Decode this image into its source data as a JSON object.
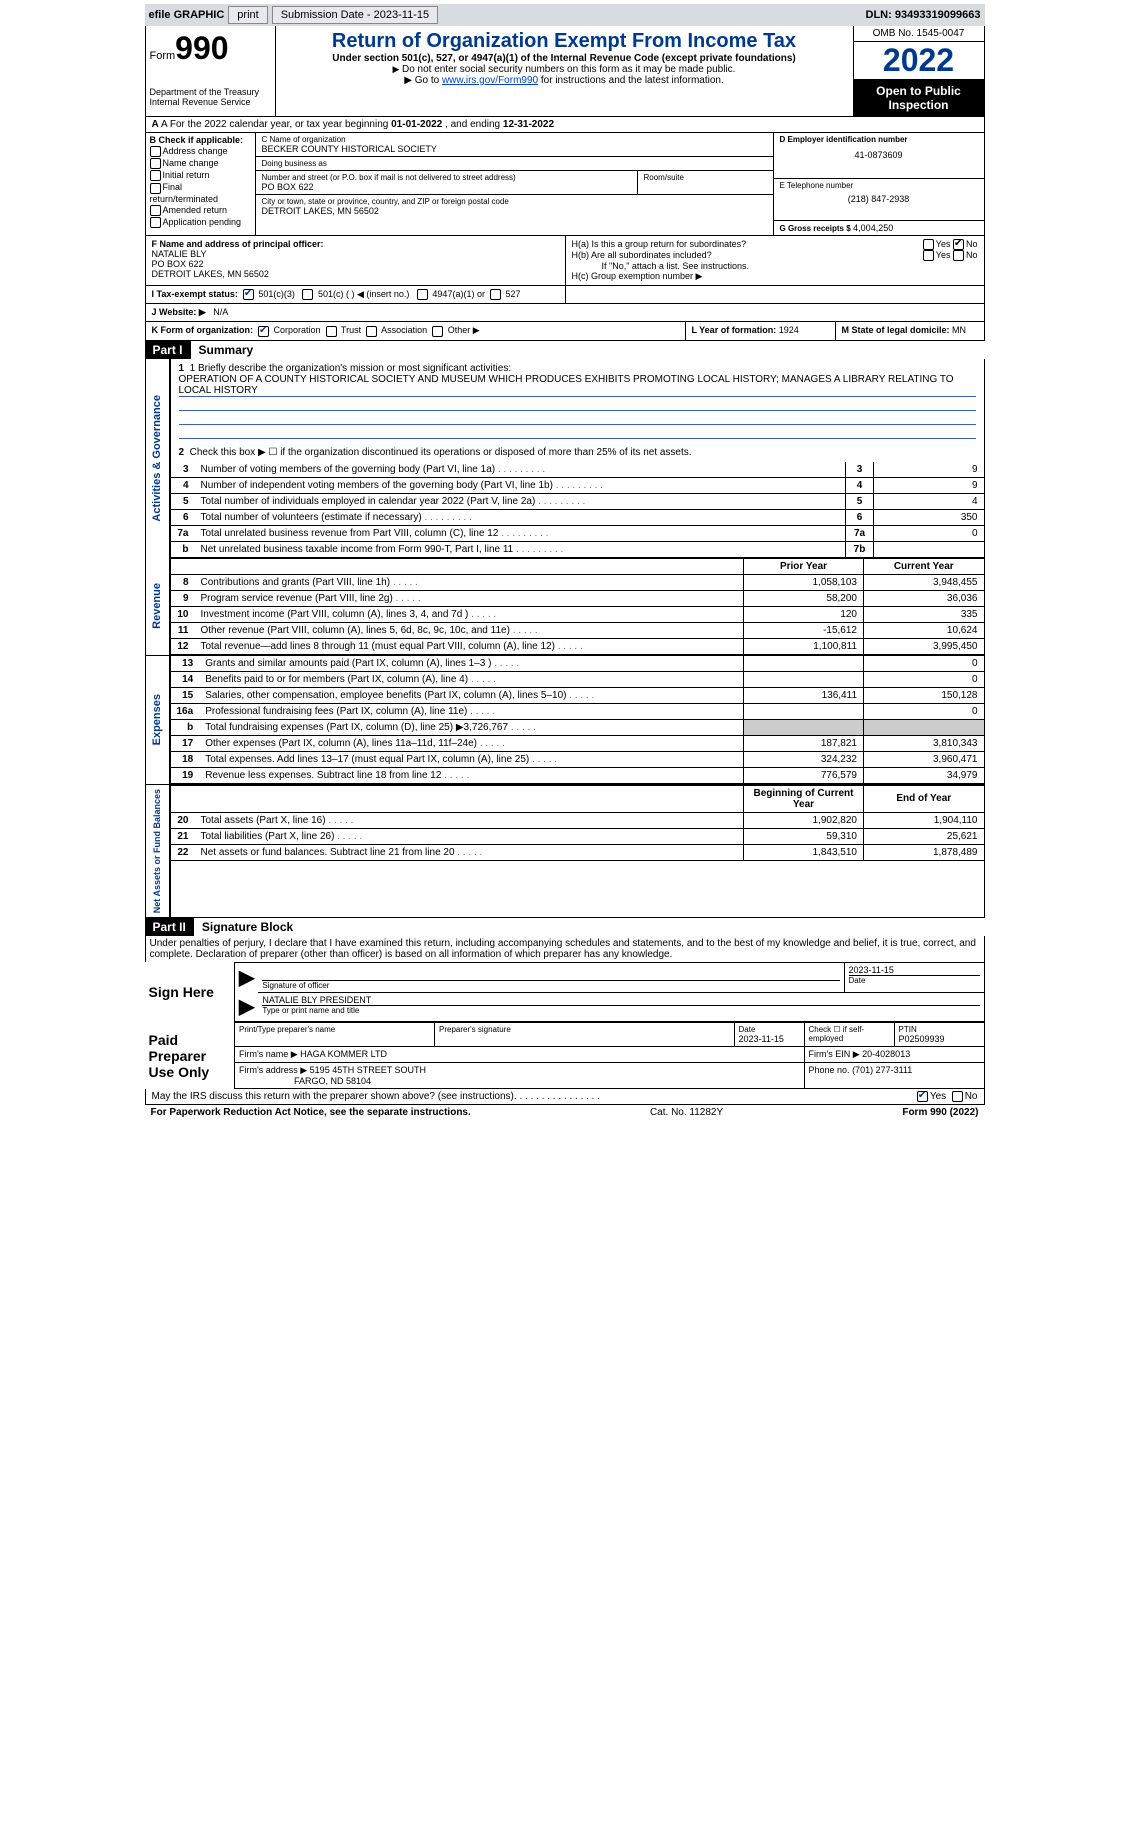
{
  "topbar": {
    "efile": "efile GRAPHIC",
    "print": "print",
    "submission_label": "Submission Date - 2023-11-15",
    "dln_label": "DLN: 93493319099663"
  },
  "header": {
    "form_word": "Form",
    "form_number": "990",
    "dept": "Department of the Treasury Internal Revenue Service",
    "title": "Return of Organization Exempt From Income Tax",
    "subtitle": "Under section 501(c), 527, or 4947(a)(1) of the Internal Revenue Code (except private foundations)",
    "note1": "Do not enter social security numbers on this form as it may be made public.",
    "note2_pre": "Go to ",
    "note2_link": "www.irs.gov/Form990",
    "note2_post": " for instructions and the latest information.",
    "omb": "OMB No. 1545-0047",
    "year": "2022",
    "otp": "Open to Public Inspection"
  },
  "rowA": {
    "text_pre": "A For the 2022 calendar year, or tax year beginning ",
    "begin": "01-01-2022",
    "mid": " , and ending ",
    "end": "12-31-2022"
  },
  "colB": {
    "label": "B Check if applicable:",
    "items": [
      "Address change",
      "Name change",
      "Initial return",
      "Final return/terminated",
      "Amended return",
      "Application pending"
    ]
  },
  "colC": {
    "name_lbl": "C Name of organization",
    "name": "BECKER COUNTY HISTORICAL SOCIETY",
    "dba_lbl": "Doing business as",
    "dba": "",
    "street_lbl": "Number and street (or P.O. box if mail is not delivered to street address)",
    "room_lbl": "Room/suite",
    "street": "PO BOX 622",
    "city_lbl": "City or town, state or province, country, and ZIP or foreign postal code",
    "city": "DETROIT LAKES, MN  56502"
  },
  "colD": {
    "ein_lbl": "D Employer identification number",
    "ein": "41-0873609",
    "phone_lbl": "E Telephone number",
    "phone": "(218) 847-2938",
    "gross_lbl": "G Gross receipts $",
    "gross": "4,004,250"
  },
  "rowF": {
    "f_lbl": "F Name and address of principal officer:",
    "f_name": "NATALIE BLY",
    "f_addr1": "PO BOX 622",
    "f_addr2": "DETROIT LAKES, MN  56502",
    "h_a": "H(a)  Is this a group return for subordinates?",
    "h_b": "H(b)  Are all subordinates included?",
    "h_b_note": "If \"No,\" attach a list. See instructions.",
    "h_c": "H(c)  Group exemption number ▶",
    "yes": "Yes",
    "no": "No"
  },
  "rowI": {
    "label": "I  Tax-exempt status:",
    "c3": "501(c)(3)",
    "c": "501(c) (  ) ◀ (insert no.)",
    "a1": "4947(a)(1) or",
    "s527": "527"
  },
  "rowJ": {
    "label": "J  Website: ▶",
    "value": "N/A"
  },
  "rowK": {
    "label": "K Form of organization:",
    "corp": "Corporation",
    "trust": "Trust",
    "assoc": "Association",
    "other": "Other ▶",
    "l_lbl": "L Year of formation:",
    "l_val": "1924",
    "m_lbl": "M State of legal domicile:",
    "m_val": "MN"
  },
  "part1": {
    "bar": "Part I",
    "title": "Summary",
    "side_gov": "Activities & Governance",
    "side_rev": "Revenue",
    "side_exp": "Expenses",
    "side_net": "Net Assets or Fund Balances",
    "l1_lbl": "1  Briefly describe the organization's mission or most significant activities:",
    "l1_val": "OPERATION OF A COUNTY HISTORICAL SOCIETY AND MUSEUM WHICH PRODUCES EXHIBITS PROMOTING LOCAL HISTORY; MANAGES A LIBRARY RELATING TO LOCAL HISTORY",
    "l2": "Check this box ▶ ☐ if the organization discontinued its operations or disposed of more than 25% of its net assets.",
    "lines_gov": [
      {
        "n": "3",
        "d": "Number of voting members of the governing body (Part VI, line 1a)",
        "b": "3",
        "v": "9"
      },
      {
        "n": "4",
        "d": "Number of independent voting members of the governing body (Part VI, line 1b)",
        "b": "4",
        "v": "9"
      },
      {
        "n": "5",
        "d": "Total number of individuals employed in calendar year 2022 (Part V, line 2a)",
        "b": "5",
        "v": "4"
      },
      {
        "n": "6",
        "d": "Total number of volunteers (estimate if necessary)",
        "b": "6",
        "v": "350"
      },
      {
        "n": "7a",
        "d": "Total unrelated business revenue from Part VIII, column (C), line 12",
        "b": "7a",
        "v": "0"
      },
      {
        "n": "b",
        "d": "Net unrelated business taxable income from Form 990-T, Part I, line 11",
        "b": "7b",
        "v": ""
      }
    ],
    "hdr_prior": "Prior Year",
    "hdr_curr": "Current Year",
    "lines_rev": [
      {
        "n": "8",
        "d": "Contributions and grants (Part VIII, line 1h)",
        "p": "1,058,103",
        "c": "3,948,455"
      },
      {
        "n": "9",
        "d": "Program service revenue (Part VIII, line 2g)",
        "p": "58,200",
        "c": "36,036"
      },
      {
        "n": "10",
        "d": "Investment income (Part VIII, column (A), lines 3, 4, and 7d )",
        "p": "120",
        "c": "335"
      },
      {
        "n": "11",
        "d": "Other revenue (Part VIII, column (A), lines 5, 6d, 8c, 9c, 10c, and 11e)",
        "p": "-15,612",
        "c": "10,624"
      },
      {
        "n": "12",
        "d": "Total revenue—add lines 8 through 11 (must equal Part VIII, column (A), line 12)",
        "p": "1,100,811",
        "c": "3,995,450"
      }
    ],
    "lines_exp": [
      {
        "n": "13",
        "d": "Grants and similar amounts paid (Part IX, column (A), lines 1–3 )",
        "p": "",
        "c": "0"
      },
      {
        "n": "14",
        "d": "Benefits paid to or for members (Part IX, column (A), line 4)",
        "p": "",
        "c": "0"
      },
      {
        "n": "15",
        "d": "Salaries, other compensation, employee benefits (Part IX, column (A), lines 5–10)",
        "p": "136,411",
        "c": "150,128"
      },
      {
        "n": "16a",
        "d": "Professional fundraising fees (Part IX, column (A), line 11e)",
        "p": "",
        "c": "0"
      },
      {
        "n": "b",
        "d": "Total fundraising expenses (Part IX, column (D), line 25) ▶3,726,767",
        "p": "__GRAY__",
        "c": "__GRAY__"
      },
      {
        "n": "17",
        "d": "Other expenses (Part IX, column (A), lines 11a–11d, 11f–24e)",
        "p": "187,821",
        "c": "3,810,343"
      },
      {
        "n": "18",
        "d": "Total expenses. Add lines 13–17 (must equal Part IX, column (A), line 25)",
        "p": "324,232",
        "c": "3,960,471"
      },
      {
        "n": "19",
        "d": "Revenue less expenses. Subtract line 18 from line 12",
        "p": "776,579",
        "c": "34,979"
      }
    ],
    "hdr_beg": "Beginning of Current Year",
    "hdr_end": "End of Year",
    "lines_net": [
      {
        "n": "20",
        "d": "Total assets (Part X, line 16)",
        "p": "1,902,820",
        "c": "1,904,110"
      },
      {
        "n": "21",
        "d": "Total liabilities (Part X, line 26)",
        "p": "59,310",
        "c": "25,621"
      },
      {
        "n": "22",
        "d": "Net assets or fund balances. Subtract line 21 from line 20",
        "p": "1,843,510",
        "c": "1,878,489"
      }
    ]
  },
  "part2": {
    "bar": "Part II",
    "title": "Signature Block",
    "decl": "Under penalties of perjury, I declare that I have examined this return, including accompanying schedules and statements, and to the best of my knowledge and belief, it is true, correct, and complete. Declaration of preparer (other than officer) is based on all information of which preparer has any knowledge.",
    "sign_here": "Sign Here",
    "sig_officer": "Signature of officer",
    "sig_date": "2023-11-15",
    "date_lbl": "Date",
    "sig_name": "NATALIE BLY PRESIDENT",
    "sig_name_lbl": "Type or print name and title",
    "paid": "Paid Preparer Use Only",
    "pname_lbl": "Print/Type preparer's name",
    "pname": "",
    "psig_lbl": "Preparer's signature",
    "pdate_lbl": "Date",
    "pdate": "2023-11-15",
    "pcheck_lbl": "Check ☐ if self-employed",
    "ptin_lbl": "PTIN",
    "ptin": "P02509939",
    "firm_name_lbl": "Firm's name    ▶",
    "firm_name": "HAGA KOMMER LTD",
    "firm_ein_lbl": "Firm's EIN ▶",
    "firm_ein": "20-4028013",
    "firm_addr_lbl": "Firm's address ▶",
    "firm_addr1": "5195 45TH STREET SOUTH",
    "firm_addr2": "FARGO, ND  58104",
    "firm_phone_lbl": "Phone no.",
    "firm_phone": "(701) 277-3111",
    "may_irs": "May the IRS discuss this return with the preparer shown above? (see instructions)",
    "yes": "Yes",
    "no": "No"
  },
  "footer": {
    "left": "For Paperwork Reduction Act Notice, see the separate instructions.",
    "mid": "Cat. No. 11282Y",
    "right_pre": "Form ",
    "right_num": "990",
    "right_post": " (2022)"
  },
  "colors": {
    "blue": "#003a8e",
    "gray_bg": "#d8dbdf",
    "link": "#0044cc"
  }
}
